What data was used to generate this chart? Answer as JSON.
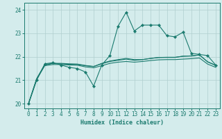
{
  "xlabel": "Humidex (Indice chaleur)",
  "ylabel": "",
  "bg_color": "#d4ecec",
  "grid_color": "#b0cfcf",
  "line_color": "#1a7a6e",
  "xlim": [
    -0.5,
    23.5
  ],
  "ylim": [
    19.8,
    24.3
  ],
  "xticks": [
    0,
    1,
    2,
    3,
    4,
    5,
    6,
    7,
    8,
    9,
    10,
    11,
    12,
    13,
    14,
    15,
    16,
    17,
    18,
    19,
    20,
    21,
    22,
    23
  ],
  "yticks": [
    20,
    21,
    22,
    23,
    24
  ],
  "series1_x": [
    0,
    1,
    2,
    3,
    4,
    5,
    6,
    7,
    8,
    9,
    10,
    11,
    12,
    13,
    14,
    15,
    16,
    17,
    18,
    19,
    20,
    21,
    22,
    23
  ],
  "series1_y": [
    20.0,
    21.0,
    21.7,
    21.75,
    21.65,
    21.55,
    21.5,
    21.35,
    20.75,
    21.65,
    22.05,
    23.3,
    23.9,
    23.1,
    23.35,
    23.35,
    23.35,
    22.9,
    22.85,
    23.05,
    22.15,
    22.1,
    22.05,
    21.65
  ],
  "series2_x": [
    0,
    1,
    2,
    3,
    4,
    5,
    6,
    7,
    8,
    9,
    10,
    11,
    12,
    13,
    14,
    15,
    16,
    17,
    18,
    19,
    20,
    21,
    22,
    23
  ],
  "series2_y": [
    20.0,
    21.05,
    21.65,
    21.72,
    21.7,
    21.68,
    21.67,
    21.62,
    21.58,
    21.72,
    21.82,
    21.88,
    21.93,
    21.88,
    21.88,
    21.93,
    21.97,
    21.97,
    21.97,
    22.03,
    22.03,
    22.08,
    21.78,
    21.63
  ],
  "series3_x": [
    0,
    1,
    2,
    3,
    4,
    5,
    6,
    7,
    8,
    9,
    10,
    11,
    12,
    13,
    14,
    15,
    16,
    17,
    18,
    19,
    20,
    21,
    22,
    23
  ],
  "series3_y": [
    20.0,
    21.07,
    21.67,
    21.72,
    21.72,
    21.7,
    21.69,
    21.63,
    21.59,
    21.7,
    21.8,
    21.85,
    21.9,
    21.85,
    21.88,
    21.93,
    21.97,
    21.98,
    21.98,
    22.02,
    22.04,
    22.08,
    21.79,
    21.64
  ],
  "series4_x": [
    0,
    1,
    2,
    3,
    4,
    5,
    6,
    7,
    8,
    9,
    10,
    11,
    12,
    13,
    14,
    15,
    16,
    17,
    18,
    19,
    20,
    21,
    22,
    23
  ],
  "series4_y": [
    20.0,
    21.03,
    21.62,
    21.67,
    21.67,
    21.65,
    21.64,
    21.57,
    21.53,
    21.62,
    21.72,
    21.77,
    21.8,
    21.77,
    21.8,
    21.84,
    21.87,
    21.88,
    21.88,
    21.9,
    21.92,
    21.95,
    21.69,
    21.55
  ]
}
